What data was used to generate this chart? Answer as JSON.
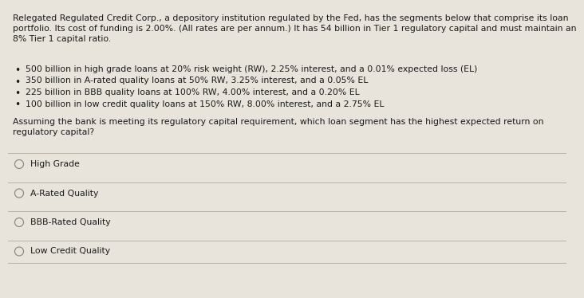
{
  "background_color": "#e8e4dc",
  "text_color": "#1a1a1a",
  "paragraph1": "Relegated Regulated Credit Corp., a depository institution regulated by the Fed, has the segments below that comprise its loan\nportfolio. Its cost of funding is 2.00%. (All rates are per annum.) It has 54 billion in Tier 1 regulatory capital and must maintain an\n8% Tier 1 capital ratio.",
  "bullets": [
    "500 billion in high grade loans at 20% risk weight (RW), 2.25% interest, and a 0.01% expected loss (EL)",
    "350 billion in A-rated quality loans at 50% RW, 3.25% interest, and a 0.05% EL",
    "225 billion in BBB quality loans at 100% RW, 4.00% interest, and a 0.20% EL",
    "100 billion in low credit quality loans at 150% RW, 8.00% interest, and a 2.75% EL"
  ],
  "question": "Assuming the bank is meeting its regulatory capital requirement, which loan segment has the highest expected return on\nregulatory capital?",
  "choices": [
    "High Grade",
    "A-Rated Quality",
    "BBB-Rated Quality",
    "Low Credit Quality"
  ],
  "font_size_body": 7.8,
  "font_size_choices": 7.8,
  "line_color": "#b0aaa0",
  "circle_color": "#888880"
}
